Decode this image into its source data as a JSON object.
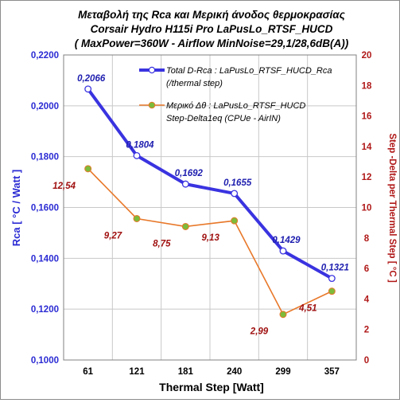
{
  "chart_data": {
    "type": "line",
    "title": [
      "Μεταβολή της Rca  και Μερική άνοδος θερμοκρασίας",
      "Corsair Hydro H115i Pro    LaPusLo_RTSF_HUCD",
      "( MaxPower=360W - Airflow MinNoise=29,1/28,6dB(A))"
    ],
    "xlabel": "Thermal Step [Watt]",
    "ylabel_left": "Rca  [ °C / Watt ]",
    "ylabel_right": "Step -Delta per Thermal Step  [ °C ]",
    "categories": [
      "61",
      "121",
      "181",
      "240",
      "299",
      "357"
    ],
    "y_left_lim": [
      0.1,
      0.22
    ],
    "y_left_ticks": [
      "0,1000",
      "0,1200",
      "0,1400",
      "0,1600",
      "0,1800",
      "0,2000",
      "0,2200"
    ],
    "y_right_lim": [
      0,
      20
    ],
    "y_right_ticks": [
      "0",
      "2",
      "4",
      "6",
      "8",
      "10",
      "12",
      "14",
      "16",
      "18",
      "20"
    ],
    "grid": true,
    "legend_position": "top-right",
    "series": [
      {
        "name": "Total D-Rca :  LaPusLo_RTSF_HUCD_Rca (/thermal step)",
        "legend_lines": [
          "Total D-Rca :  LaPusLo_RTSF_HUCD_Rca",
          "(/thermal step)"
        ],
        "axis": "left",
        "color": "#3a33e0",
        "values": [
          0.2066,
          0.1804,
          0.1692,
          0.1655,
          0.1429,
          0.1321
        ],
        "labels": [
          "0,2066",
          "0,1804",
          "0,1692",
          "0,1655",
          "0,1429",
          "0,1321"
        ]
      },
      {
        "name": "Μερικό Δθ :  LaPusLo_RTSF_HUCD Step-Delta1eq (CPUe - AirIN)",
        "legend_lines": [
          "Μερικό Δθ :  LaPusLo_RTSF_HUCD",
          "Step-Delta1eq (CPUe - AirIN)"
        ],
        "axis": "right",
        "color": "#e8782a",
        "marker_color": "#7dbb3a",
        "values": [
          12.54,
          9.27,
          8.75,
          9.13,
          2.99,
          4.51
        ],
        "labels": [
          "12,54",
          "9,27",
          "8,75",
          "9,13",
          "2,99",
          "4,51"
        ]
      }
    ],
    "colors": {
      "left_axis_text": "#2b2bd4",
      "right_axis_text": "#b01818",
      "left_point_label": "#2020b0",
      "right_point_label": "#a01010",
      "grid": "#c8c8c8"
    }
  }
}
